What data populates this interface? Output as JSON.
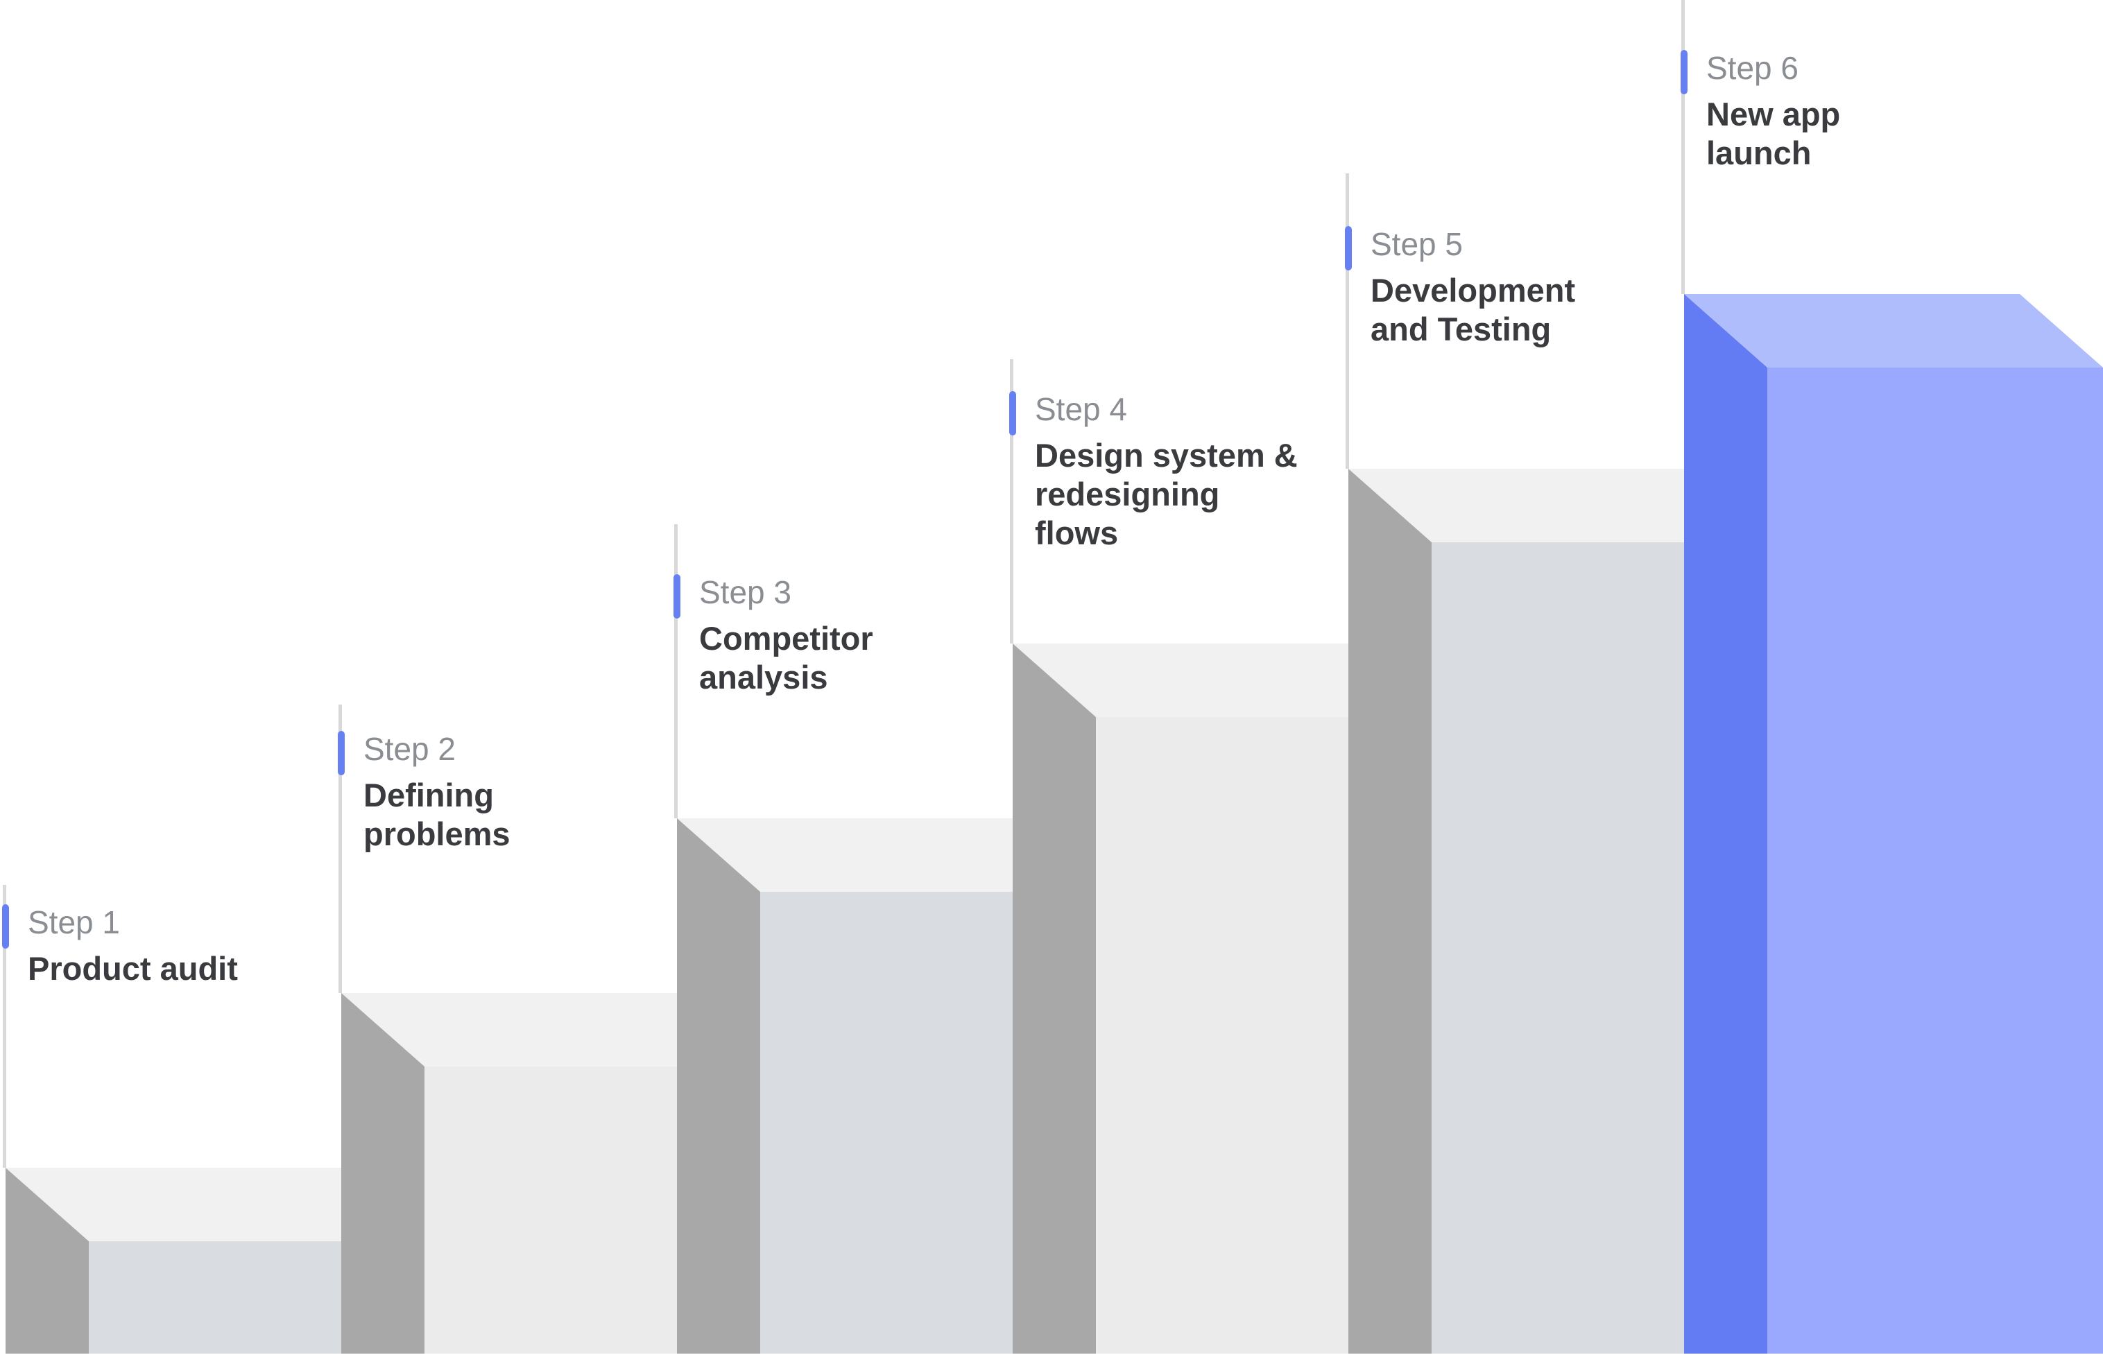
{
  "colors": {
    "accent": "#6680f4",
    "accent_front": "#9aa9fd",
    "accent_top": "#b0bdfd",
    "accent_side": "#637cf3",
    "front_light": "#d9dce0",
    "front_lighter": "#ebebeb",
    "top": "#f1f1f1",
    "side": "#a8a8a8",
    "guide_line": "#d8d8d8"
  },
  "steps": [
    {
      "label": "Step 1",
      "title": "Product audit",
      "highlight": false
    },
    {
      "label": "Step 2",
      "title": "Defining\nproblems",
      "highlight": false
    },
    {
      "label": "Step 3",
      "title": "Competitor\nanalysis",
      "highlight": false
    },
    {
      "label": "Step 4",
      "title": "Design system &\nredesigning\nflows",
      "highlight": false
    },
    {
      "label": "Step 5",
      "title": "Development\nand Testing",
      "highlight": false
    },
    {
      "label": "Step 6",
      "title": "New app\nlaunch",
      "highlight": true
    }
  ]
}
